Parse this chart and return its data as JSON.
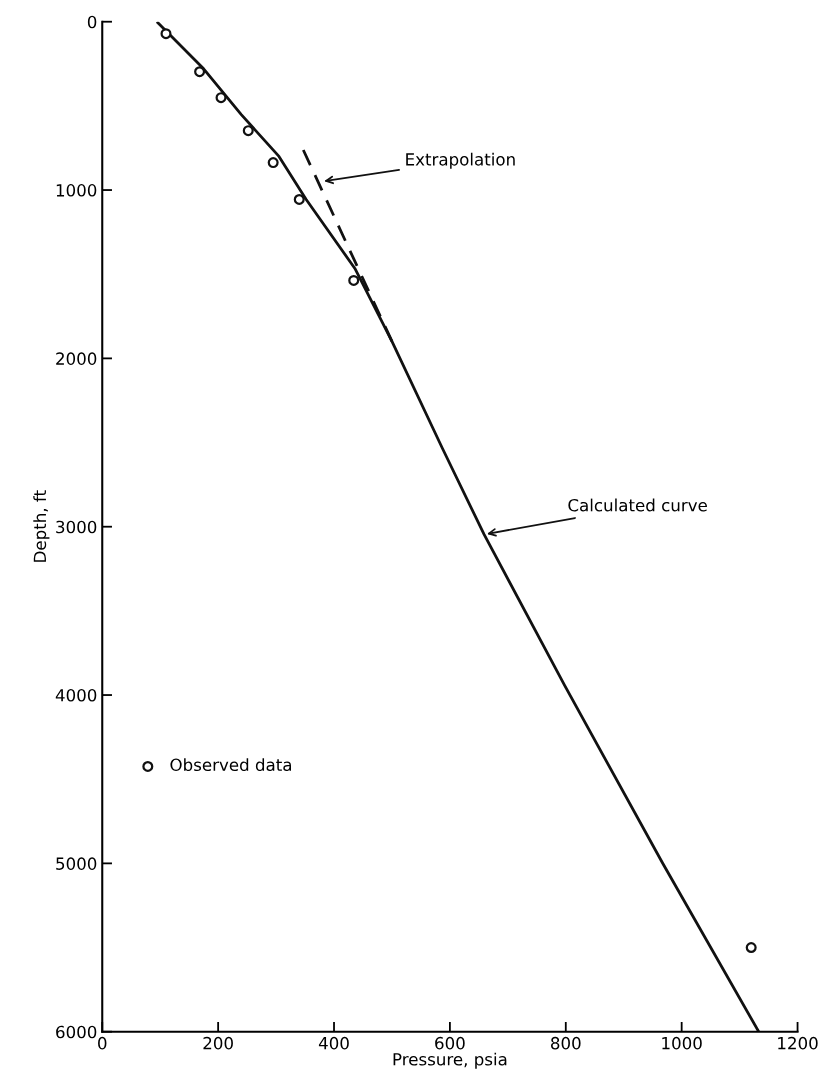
{
  "chart_data": {
    "type": "line",
    "xlabel": "Pressure, psia",
    "ylabel": "Depth, ft",
    "series": [
      {
        "color": "#111111",
        "line_style": "solid",
        "marker": "none",
        "x": [
          96,
          175,
          240,
          305,
          352,
          436,
          500,
          587,
          659,
          798,
          967,
          1133
        ],
        "values": [
          6,
          280,
          552,
          800,
          1056,
          1466,
          1899,
          2534,
          3046,
          3943,
          4998,
          6000
        ]
      },
      {
        "color": "#111111",
        "line_style": "dashed",
        "marker": "none",
        "x": [
          347,
          500
        ],
        "values": [
          762,
          1899
        ]
      },
      {
        "type": "scatter",
        "name": "Observed data",
        "color": "#111111",
        "marker": "circle",
        "x": [
          110,
          168,
          205,
          252,
          295,
          340,
          434,
          1120
        ],
        "values": [
          71,
          297,
          451,
          647,
          837,
          1056,
          1537,
          5500
        ]
      }
    ],
    "annotations": [
      {
        "text": "Extrapolation",
        "x": 378,
        "y": 950
      },
      {
        "text": "Calculated curve",
        "x": 659,
        "y": 3046
      }
    ],
    "xlim": [
      0,
      1200
    ],
    "xticks": [
      0,
      200,
      400,
      600,
      800,
      1000,
      1200
    ],
    "ylim": [
      6000,
      0
    ],
    "yticks": [
      0,
      1000,
      2000,
      3000,
      4000,
      5000,
      6000
    ],
    "grid": false,
    "legend": "lower left"
  }
}
